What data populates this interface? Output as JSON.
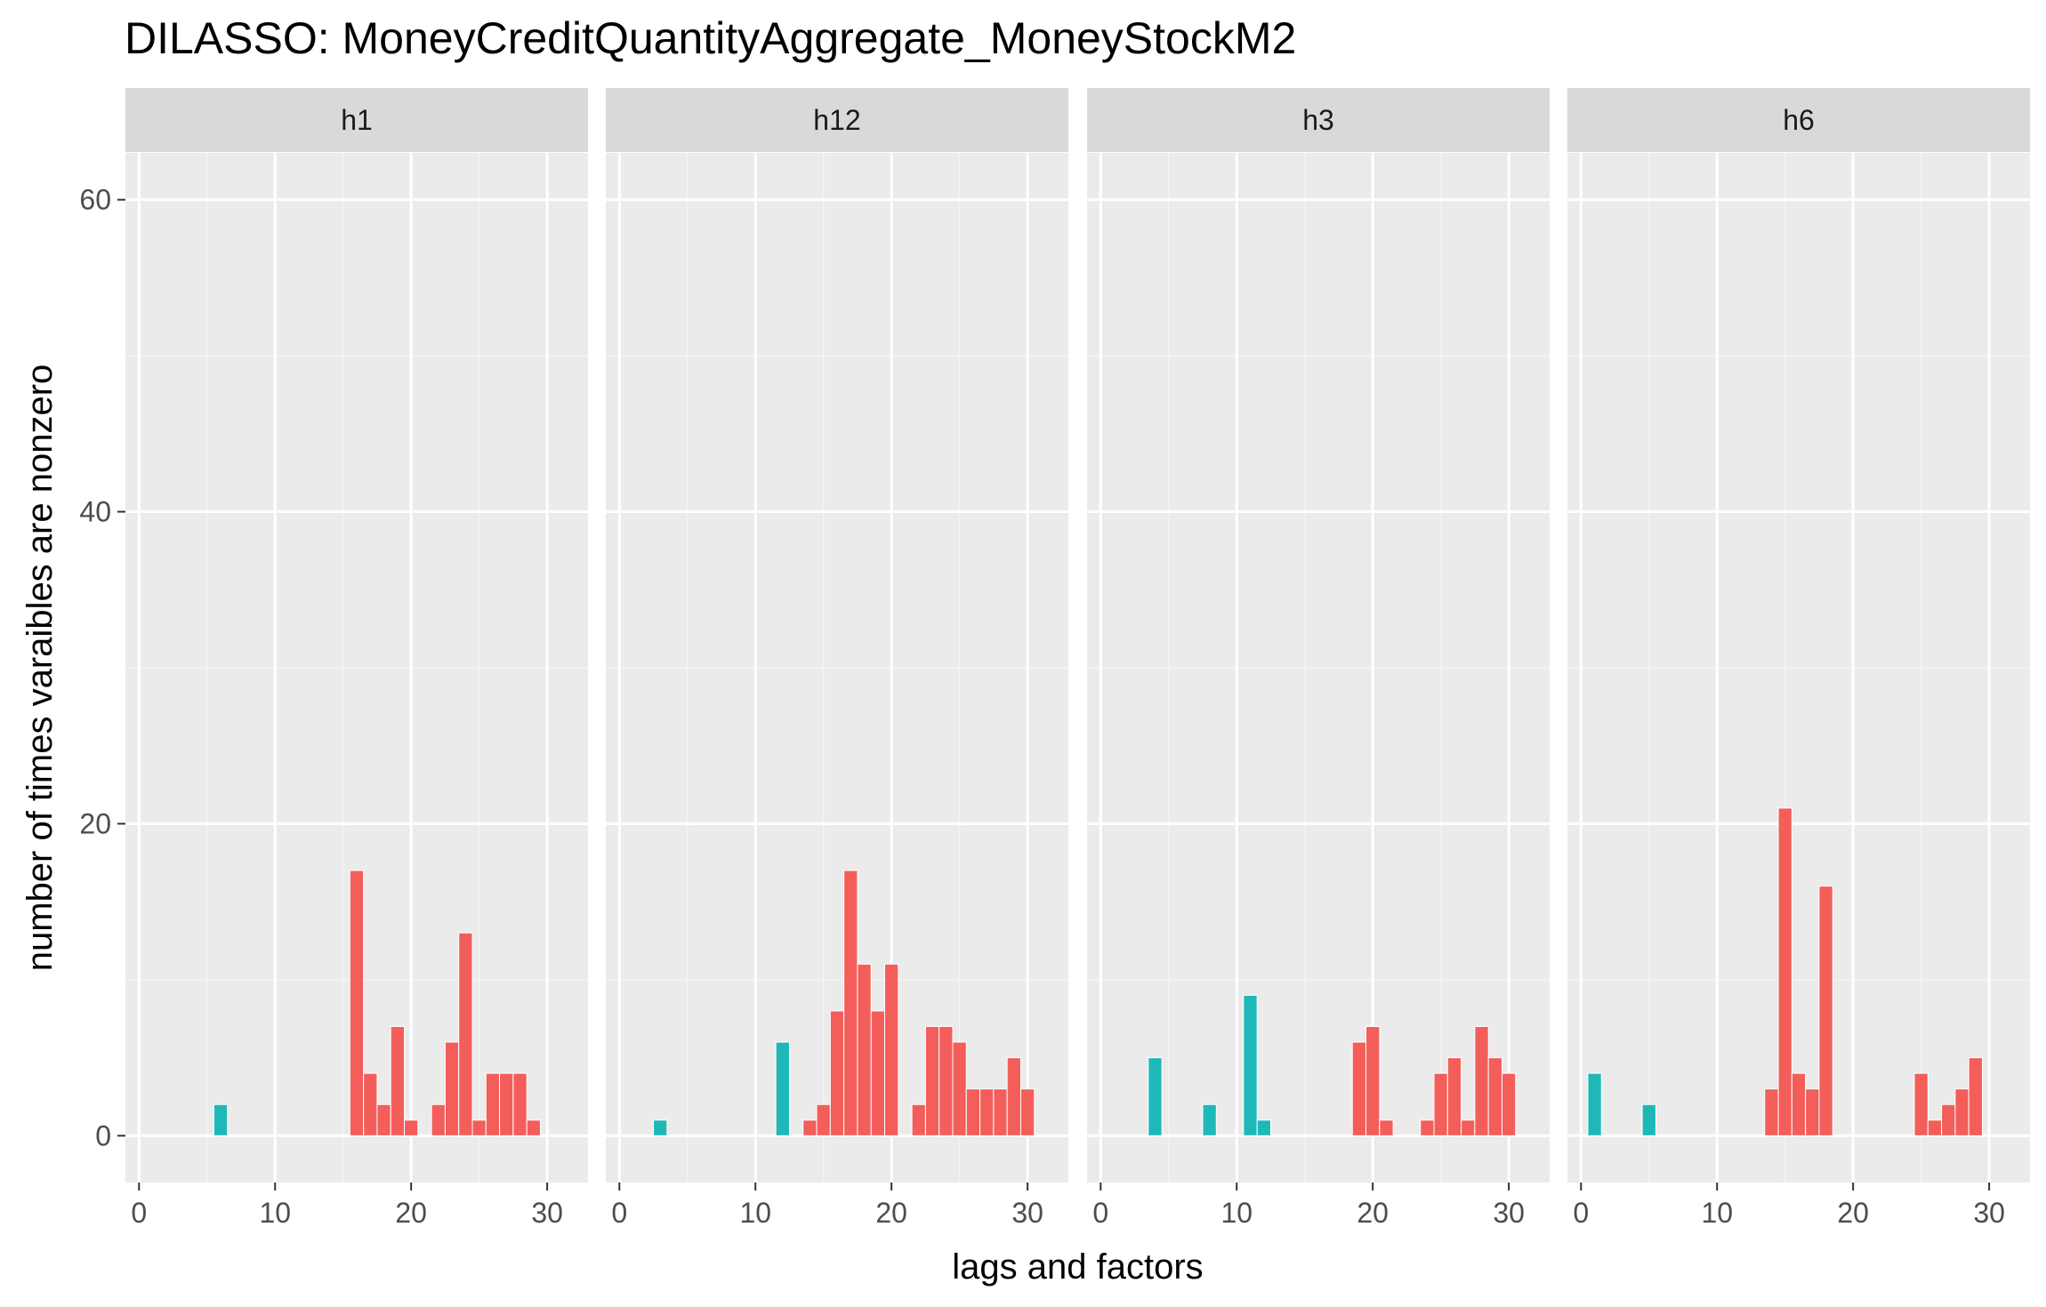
{
  "chart_data": {
    "type": "bar",
    "title": "DILASSO: MoneyCreditQuantityAggregate_MoneyStockM2",
    "xlabel": "lags and factors",
    "ylabel": "number of times varaibles are nonzero",
    "xlim": [
      -1,
      33
    ],
    "ylim": [
      -3,
      63
    ],
    "x_ticks": [
      0,
      10,
      20,
      30
    ],
    "y_ticks": [
      0,
      20,
      40,
      60
    ],
    "grid": true,
    "legend": "none",
    "colors": {
      "factor": "#1fb8b8",
      "lag": "#f35e5a"
    },
    "panels": [
      {
        "label": "h1",
        "bars": [
          {
            "x": 6,
            "value": 2,
            "group": "factor"
          },
          {
            "x": 16,
            "value": 17,
            "group": "lag"
          },
          {
            "x": 17,
            "value": 4,
            "group": "lag"
          },
          {
            "x": 18,
            "value": 2,
            "group": "lag"
          },
          {
            "x": 19,
            "value": 7,
            "group": "lag"
          },
          {
            "x": 20,
            "value": 1,
            "group": "lag"
          },
          {
            "x": 22,
            "value": 2,
            "group": "lag"
          },
          {
            "x": 23,
            "value": 6,
            "group": "lag"
          },
          {
            "x": 24,
            "value": 13,
            "group": "lag"
          },
          {
            "x": 25,
            "value": 1,
            "group": "lag"
          },
          {
            "x": 26,
            "value": 4,
            "group": "lag"
          },
          {
            "x": 27,
            "value": 4,
            "group": "lag"
          },
          {
            "x": 28,
            "value": 4,
            "group": "lag"
          },
          {
            "x": 29,
            "value": 1,
            "group": "lag"
          }
        ]
      },
      {
        "label": "h12",
        "bars": [
          {
            "x": 3,
            "value": 1,
            "group": "factor"
          },
          {
            "x": 12,
            "value": 6,
            "group": "factor"
          },
          {
            "x": 14,
            "value": 1,
            "group": "lag"
          },
          {
            "x": 15,
            "value": 2,
            "group": "lag"
          },
          {
            "x": 16,
            "value": 8,
            "group": "lag"
          },
          {
            "x": 17,
            "value": 17,
            "group": "lag"
          },
          {
            "x": 18,
            "value": 11,
            "group": "lag"
          },
          {
            "x": 19,
            "value": 8,
            "group": "lag"
          },
          {
            "x": 20,
            "value": 11,
            "group": "lag"
          },
          {
            "x": 22,
            "value": 2,
            "group": "lag"
          },
          {
            "x": 23,
            "value": 7,
            "group": "lag"
          },
          {
            "x": 24,
            "value": 7,
            "group": "lag"
          },
          {
            "x": 25,
            "value": 6,
            "group": "lag"
          },
          {
            "x": 26,
            "value": 3,
            "group": "lag"
          },
          {
            "x": 27,
            "value": 3,
            "group": "lag"
          },
          {
            "x": 28,
            "value": 3,
            "group": "lag"
          },
          {
            "x": 29,
            "value": 5,
            "group": "lag"
          },
          {
            "x": 30,
            "value": 3,
            "group": "lag"
          }
        ]
      },
      {
        "label": "h3",
        "bars": [
          {
            "x": 4,
            "value": 5,
            "group": "factor"
          },
          {
            "x": 8,
            "value": 2,
            "group": "factor"
          },
          {
            "x": 11,
            "value": 9,
            "group": "factor"
          },
          {
            "x": 12,
            "value": 1,
            "group": "factor"
          },
          {
            "x": 19,
            "value": 6,
            "group": "lag"
          },
          {
            "x": 20,
            "value": 7,
            "group": "lag"
          },
          {
            "x": 21,
            "value": 1,
            "group": "lag"
          },
          {
            "x": 24,
            "value": 1,
            "group": "lag"
          },
          {
            "x": 25,
            "value": 4,
            "group": "lag"
          },
          {
            "x": 26,
            "value": 5,
            "group": "lag"
          },
          {
            "x": 27,
            "value": 1,
            "group": "lag"
          },
          {
            "x": 28,
            "value": 7,
            "group": "lag"
          },
          {
            "x": 29,
            "value": 5,
            "group": "lag"
          },
          {
            "x": 30,
            "value": 4,
            "group": "lag"
          }
        ]
      },
      {
        "label": "h6",
        "bars": [
          {
            "x": 1,
            "value": 4,
            "group": "factor"
          },
          {
            "x": 5,
            "value": 2,
            "group": "factor"
          },
          {
            "x": 14,
            "value": 3,
            "group": "lag"
          },
          {
            "x": 15,
            "value": 21,
            "group": "lag"
          },
          {
            "x": 16,
            "value": 4,
            "group": "lag"
          },
          {
            "x": 17,
            "value": 3,
            "group": "lag"
          },
          {
            "x": 18,
            "value": 16,
            "group": "lag"
          },
          {
            "x": 25,
            "value": 4,
            "group": "lag"
          },
          {
            "x": 26,
            "value": 1,
            "group": "lag"
          },
          {
            "x": 27,
            "value": 2,
            "group": "lag"
          },
          {
            "x": 28,
            "value": 3,
            "group": "lag"
          },
          {
            "x": 29,
            "value": 5,
            "group": "lag"
          }
        ]
      }
    ]
  }
}
